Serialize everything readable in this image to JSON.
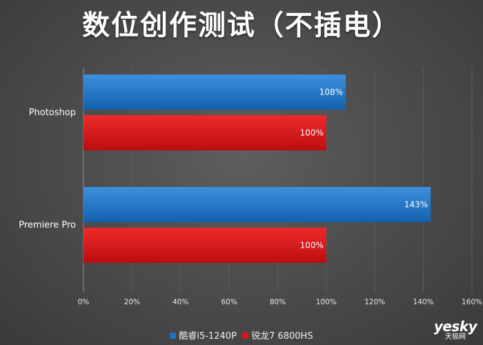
{
  "title": "数位创作测试（不插电）",
  "chart_data": {
    "type": "bar",
    "orientation": "horizontal",
    "title": "数位创作测试（不插电）",
    "categories": [
      "Photoshop",
      "Premiere Pro"
    ],
    "series": [
      {
        "name": "酷睿i5-1240P",
        "values": [
          108,
          143
        ],
        "labels": [
          "108%",
          "143%"
        ],
        "color": "#1c72c4"
      },
      {
        "name": "锐龙7 6800HS",
        "values": [
          100,
          100
        ],
        "labels": [
          "100%",
          "100%"
        ],
        "color": "#d8161a"
      }
    ],
    "x_ticks": [
      "0%",
      "20%",
      "40%",
      "60%",
      "80%",
      "100%",
      "120%",
      "140%",
      "160%"
    ],
    "xlim": [
      0,
      160
    ],
    "xlabel": "",
    "ylabel": "",
    "grid": "vertical",
    "legend": "bottom"
  },
  "watermark": {
    "logo": "yesky",
    "sub": "天极网"
  }
}
